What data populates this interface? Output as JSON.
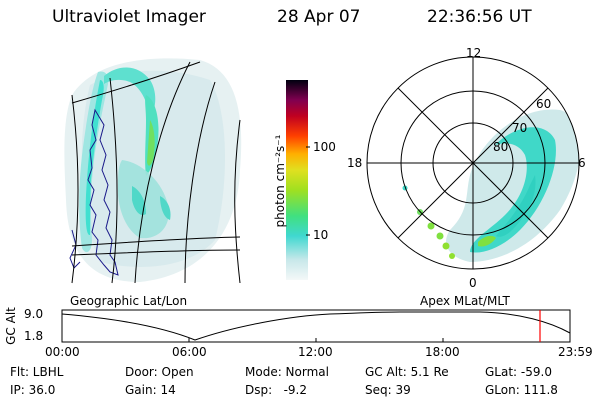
{
  "header": {
    "title": "Ultraviolet Imager",
    "date": "28 Apr 07",
    "time": "22:36:56 UT"
  },
  "colorbar": {
    "label": "photon cm⁻²s⁻¹",
    "ticks": [
      "100",
      "10"
    ]
  },
  "polar_plot": {
    "mlt_labels": [
      "12",
      "18",
      "6",
      "0"
    ],
    "lat_labels": [
      "60",
      "70",
      "80"
    ]
  },
  "map_labels": {
    "left": "Geographic Lat/Lon",
    "right": "Apex MLat/MLT"
  },
  "altitude_chart": {
    "ylabel": "GC Alt",
    "y_ticks": [
      "9.0",
      "1.8"
    ],
    "x_ticks": [
      "00:00",
      "06:00",
      "12:00",
      "18:00",
      "23:59"
    ]
  },
  "status": {
    "flt": "Flt: LBHL",
    "ip": "IP: 36.0",
    "door": "Door: Open",
    "gain": "Gain: 14",
    "mode": "Mode: Normal",
    "dsp": "Dsp:   -9.2",
    "gc_alt": "GC Alt: 5.1 Re",
    "seq": "Seq: 39",
    "glat": "GLat: -59.0",
    "glon": "GLon: 111.8"
  },
  "colors": {
    "background": "#ffffff",
    "aurora_cyan": "#40e0d0",
    "aurora_green": "#80e040",
    "marker_red": "#ff0000"
  }
}
